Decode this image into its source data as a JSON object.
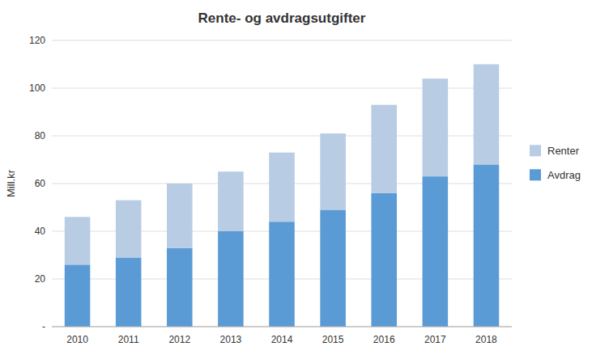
{
  "chart_data": {
    "type": "bar",
    "title": "Rente- og avdragsutgifter",
    "ylabel": "Mill.kr",
    "categories": [
      "2010",
      "2011",
      "2012",
      "2013",
      "2014",
      "2015",
      "2016",
      "2017",
      "2018"
    ],
    "series": [
      {
        "name": "Avdrag",
        "color": "#5B9BD5",
        "values": [
          26,
          29,
          33,
          40,
          44,
          49,
          56,
          63,
          68
        ]
      },
      {
        "name": "Renter",
        "color": "#B8CCE4",
        "values": [
          20,
          24,
          27,
          25,
          29,
          32,
          37,
          41,
          42
        ]
      }
    ],
    "stacked": true,
    "ylim": [
      0,
      120
    ],
    "yticks": [
      {
        "value": 0,
        "label": "-"
      },
      20,
      40,
      60,
      80,
      100,
      120
    ],
    "grid": true,
    "legend": "right"
  }
}
